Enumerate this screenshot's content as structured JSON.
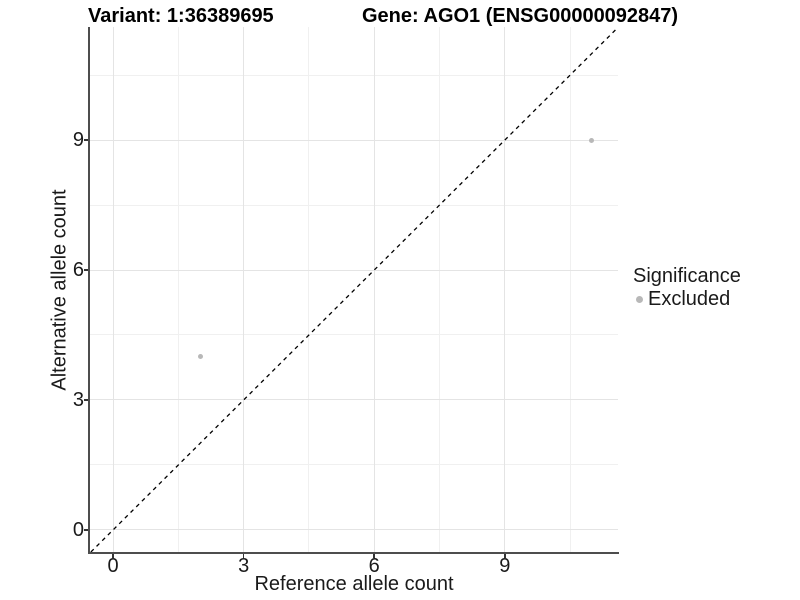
{
  "title": {
    "variant_label": "Variant: 1:36389695",
    "gene_label": "Gene: AGO1 (ENSG00000092847)"
  },
  "x_axis": {
    "label": "Reference allele count"
  },
  "y_axis": {
    "label": "Alternative allele count"
  },
  "legend": {
    "title": "Significance",
    "items": [
      {
        "label": "Excluded",
        "color": "#b8b8b8"
      }
    ]
  },
  "chart_data": {
    "type": "scatter",
    "title": "Variant: 1:36389695 / Gene: AGO1 (ENSG00000092847)",
    "xlabel": "Reference allele count",
    "ylabel": "Alternative allele count",
    "x_ticks": [
      0,
      3,
      6,
      9
    ],
    "y_ticks": [
      0,
      3,
      6,
      9
    ],
    "x_minor_ticks": [
      1.5,
      4.5,
      7.5,
      10.5
    ],
    "y_minor_ticks": [
      1.5,
      4.5,
      7.5,
      10.5
    ],
    "xlim": [
      -0.53,
      11.6
    ],
    "ylim": [
      -0.51,
      11.61
    ],
    "grid": "major and minor gridlines on white panel",
    "legend_position": "right",
    "series": [
      {
        "name": "Excluded",
        "color": "#b8b8b8",
        "points": [
          {
            "x": 2,
            "y": 4
          },
          {
            "x": 11,
            "y": 9
          }
        ]
      }
    ],
    "reference_line": {
      "type": "identity",
      "equation": "y = x",
      "style": "dashed",
      "color": "#000000"
    }
  },
  "colors": {
    "background": "#ffffff",
    "grid_major": "#e4e4e4",
    "grid_minor": "#f0f0f0",
    "axis_line": "#4d4d4d",
    "tick_mark": "#333333",
    "point": "#b8b8b8",
    "text": "#1a1a1a"
  }
}
